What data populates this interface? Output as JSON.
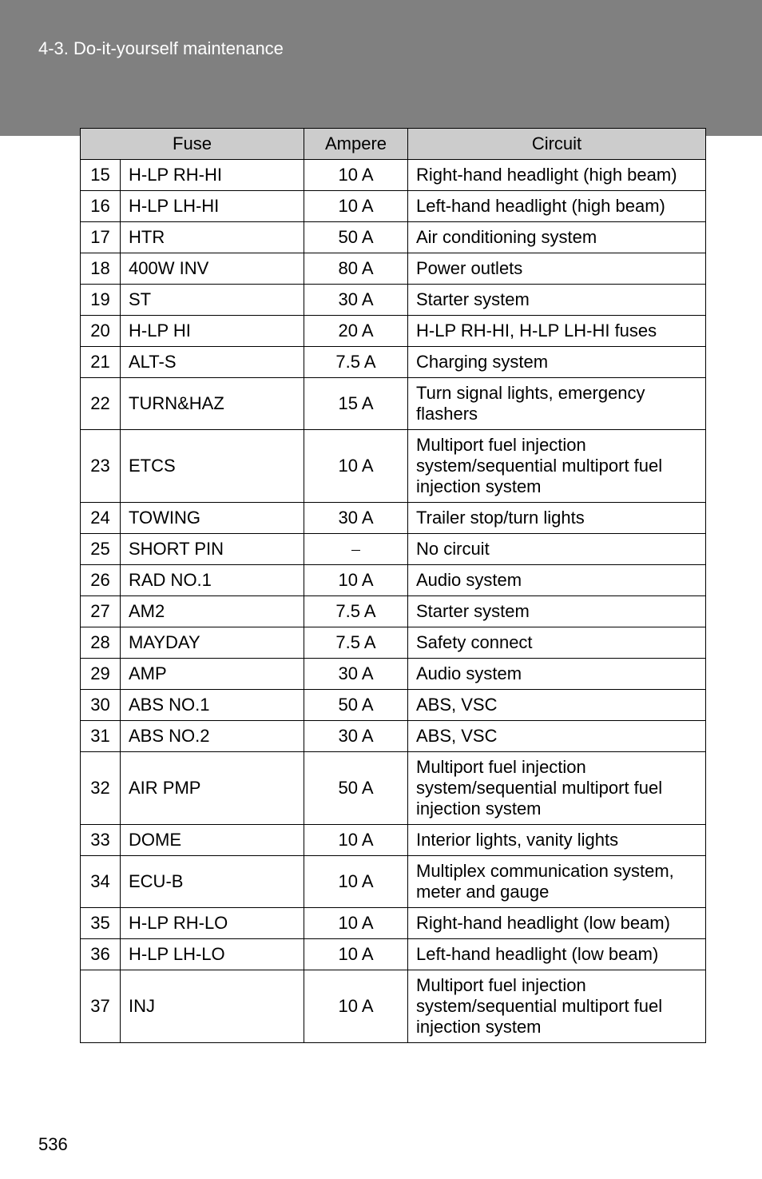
{
  "header": {
    "section": "4-3. Do-it-yourself maintenance"
  },
  "table": {
    "columns": {
      "fuse": "Fuse",
      "ampere": "Ampere",
      "circuit": "Circuit"
    },
    "rows": [
      {
        "n": "15",
        "fuse": "H-LP RH-HI",
        "amp": "10 A",
        "circuit": "Right-hand headlight (high beam)"
      },
      {
        "n": "16",
        "fuse": "H-LP LH-HI",
        "amp": "10 A",
        "circuit": "Left-hand headlight (high beam)"
      },
      {
        "n": "17",
        "fuse": "HTR",
        "amp": "50 A",
        "circuit": "Air conditioning system"
      },
      {
        "n": "18",
        "fuse": "400W INV",
        "amp": "80 A",
        "circuit": "Power outlets"
      },
      {
        "n": "19",
        "fuse": "ST",
        "amp": "30 A",
        "circuit": "Starter system"
      },
      {
        "n": "20",
        "fuse": "H-LP HI",
        "amp": "20 A",
        "circuit": "H-LP RH-HI, H-LP LH-HI fuses"
      },
      {
        "n": "21",
        "fuse": "ALT-S",
        "amp": "7.5 A",
        "circuit": "Charging system"
      },
      {
        "n": "22",
        "fuse": "TURN&HAZ",
        "amp": "15 A",
        "circuit": "Turn signal lights, emergency flashers"
      },
      {
        "n": "23",
        "fuse": "ETCS",
        "amp": "10 A",
        "circuit": "Multiport fuel injection system/sequential multiport fuel injection system"
      },
      {
        "n": "24",
        "fuse": "TOWING",
        "amp": "30 A",
        "circuit": "Trailer stop/turn lights"
      },
      {
        "n": "25",
        "fuse": "SHORT PIN",
        "amp": "⎯",
        "circuit": "No circuit"
      },
      {
        "n": "26",
        "fuse": "RAD NO.1",
        "amp": "10 A",
        "circuit": "Audio system"
      },
      {
        "n": "27",
        "fuse": "AM2",
        "amp": "7.5 A",
        "circuit": "Starter system"
      },
      {
        "n": "28",
        "fuse": "MAYDAY",
        "amp": "7.5 A",
        "circuit": "Safety connect"
      },
      {
        "n": "29",
        "fuse": "AMP",
        "amp": "30 A",
        "circuit": "Audio system"
      },
      {
        "n": "30",
        "fuse": "ABS NO.1",
        "amp": "50 A",
        "circuit": "ABS, VSC"
      },
      {
        "n": "31",
        "fuse": "ABS NO.2",
        "amp": "30 A",
        "circuit": "ABS, VSC"
      },
      {
        "n": "32",
        "fuse": "AIR PMP",
        "amp": "50 A",
        "circuit": "Multiport fuel injection system/sequential multiport fuel injection system"
      },
      {
        "n": "33",
        "fuse": "DOME",
        "amp": "10 A",
        "circuit": "Interior lights, vanity lights"
      },
      {
        "n": "34",
        "fuse": "ECU-B",
        "amp": "10 A",
        "circuit": "Multiplex communication system, meter and gauge"
      },
      {
        "n": "35",
        "fuse": "H-LP RH-LO",
        "amp": "10 A",
        "circuit": "Right-hand headlight (low beam)"
      },
      {
        "n": "36",
        "fuse": "H-LP LH-LO",
        "amp": "10 A",
        "circuit": "Left-hand headlight (low beam)"
      },
      {
        "n": "37",
        "fuse": "INJ",
        "amp": "10 A",
        "circuit": "Multiport fuel injection system/sequential multiport fuel injection system"
      }
    ]
  },
  "page_number": "536",
  "styling": {
    "header_bg": "#808080",
    "header_text_color": "#ffffff",
    "th_bg": "#cccccc",
    "border_color": "#000000",
    "body_bg": "#ffffff",
    "font_size_body": 22,
    "font_size_header": 22
  }
}
